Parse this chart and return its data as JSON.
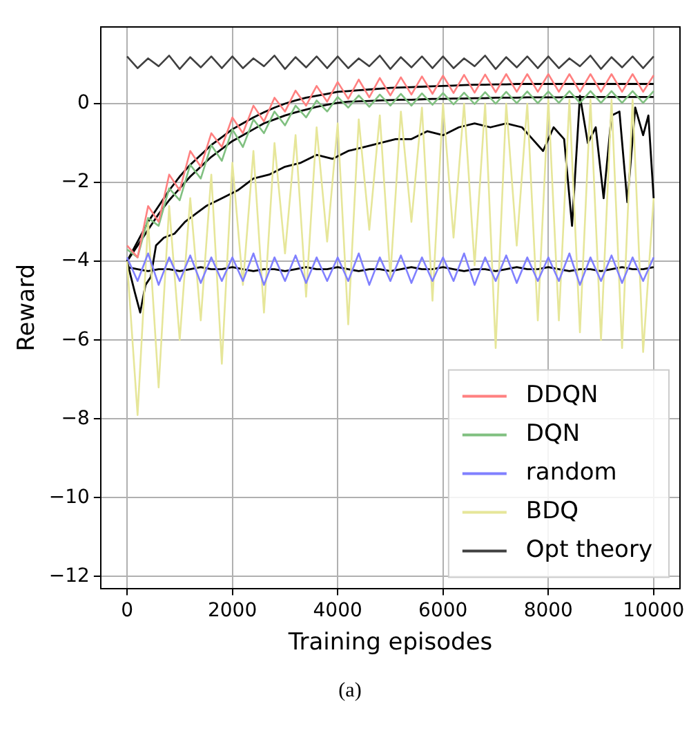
{
  "chart_data": {
    "type": "line",
    "xlabel": "Training episodes",
    "ylabel": "Reward",
    "annotations": [
      "(a)"
    ],
    "xlim": [
      -500,
      10500
    ],
    "ylim": [
      -12.3,
      1.95
    ],
    "xticks": [
      0,
      2000,
      4000,
      6000,
      8000,
      10000
    ],
    "yticks": [
      {
        "value": -12,
        "label": "−12"
      },
      {
        "value": -10,
        "label": "−10"
      },
      {
        "value": -8,
        "label": "−8"
      },
      {
        "value": -6,
        "label": "−6"
      },
      {
        "value": -4,
        "label": "−4"
      },
      {
        "value": -2,
        "label": "−2"
      },
      0
    ],
    "grid": true,
    "legend": "bottom right",
    "marker": "none",
    "line_style": "solid",
    "x": [
      0,
      200,
      400,
      600,
      800,
      1000,
      1200,
      1400,
      1600,
      1800,
      2000,
      2200,
      2400,
      2600,
      2800,
      3000,
      3200,
      3400,
      3600,
      3800,
      4000,
      4200,
      4400,
      4600,
      4800,
      5000,
      5200,
      5400,
      5600,
      5800,
      6000,
      6200,
      6400,
      6600,
      6800,
      7000,
      7200,
      7400,
      7600,
      7800,
      8000,
      8200,
      8400,
      8600,
      8800,
      9000,
      9200,
      9400,
      9600,
      9800,
      10000
    ],
    "series": [
      {
        "name": "DDQN",
        "color": "#ff8080",
        "values": [
          -3.6,
          -3.9,
          -2.6,
          -3.0,
          -1.8,
          -2.2,
          -1.2,
          -1.6,
          -0.75,
          -1.1,
          -0.35,
          -0.75,
          -0.05,
          -0.45,
          0.15,
          -0.2,
          0.33,
          -0.05,
          0.45,
          0.05,
          0.55,
          0.12,
          0.61,
          0.16,
          0.65,
          0.21,
          0.67,
          0.23,
          0.69,
          0.25,
          0.71,
          0.27,
          0.73,
          0.28,
          0.74,
          0.29,
          0.75,
          0.3,
          0.75,
          0.3,
          0.75,
          0.3,
          0.75,
          0.3,
          0.75,
          0.3,
          0.75,
          0.3,
          0.75,
          0.3,
          0.72
        ]
      },
      {
        "name": "DQN",
        "color": "#80c080",
        "values": [
          -3.7,
          -3.9,
          -2.9,
          -3.1,
          -2.15,
          -2.45,
          -1.55,
          -1.9,
          -1.05,
          -1.45,
          -0.65,
          -1.1,
          -0.4,
          -0.75,
          -0.2,
          -0.55,
          -0.05,
          -0.35,
          0.08,
          -0.2,
          0.17,
          -0.1,
          0.21,
          -0.08,
          0.23,
          -0.05,
          0.25,
          -0.05,
          0.26,
          -0.03,
          0.27,
          -0.02,
          0.28,
          -0.01,
          0.29,
          0.0,
          0.3,
          0.01,
          0.31,
          0.01,
          0.31,
          0.02,
          0.32,
          0.02,
          0.32,
          0.02,
          0.32,
          0.02,
          0.32,
          0.02,
          0.32
        ]
      },
      {
        "name": "random",
        "color": "#8080ff",
        "values": [
          -3.9,
          -4.5,
          -3.8,
          -4.6,
          -3.9,
          -4.5,
          -3.85,
          -4.55,
          -3.9,
          -4.5,
          -3.9,
          -4.5,
          -3.8,
          -4.6,
          -3.9,
          -4.5,
          -3.85,
          -4.55,
          -3.9,
          -4.5,
          -3.9,
          -4.5,
          -3.8,
          -4.6,
          -3.9,
          -4.5,
          -3.85,
          -4.55,
          -3.9,
          -4.5,
          -3.9,
          -4.5,
          -3.8,
          -4.6,
          -3.9,
          -4.5,
          -3.85,
          -4.55,
          -3.9,
          -4.5,
          -3.9,
          -4.5,
          -3.8,
          -4.6,
          -3.9,
          -4.5,
          -3.85,
          -4.55,
          -3.9,
          -4.5,
          -3.9
        ]
      },
      {
        "name": "BDQ",
        "color": "#e6e699",
        "values": [
          -4.0,
          -7.9,
          -3.0,
          -7.2,
          -2.6,
          -6.0,
          -2.4,
          -5.5,
          -1.8,
          -6.6,
          -1.5,
          -4.6,
          -1.2,
          -5.3,
          -1.0,
          -3.8,
          -0.8,
          -4.9,
          -0.6,
          -3.5,
          -0.5,
          -5.6,
          -0.4,
          -3.2,
          -0.3,
          -4.4,
          -0.2,
          -3.0,
          -0.1,
          -5.0,
          0.0,
          -3.4,
          0.0,
          -4.1,
          0.0,
          -6.2,
          0.0,
          -3.6,
          0.0,
          -5.5,
          0.1,
          -5.5,
          0.1,
          -5.8,
          0.1,
          -6.0,
          0.1,
          -6.2,
          0.1,
          -6.3,
          -2.4
        ]
      },
      {
        "name": "Opt theory",
        "color": "#404040",
        "values": [
          1.2,
          0.9,
          1.15,
          0.95,
          1.22,
          0.88,
          1.18,
          0.92,
          1.2,
          0.9,
          1.2,
          0.9,
          1.15,
          0.95,
          1.22,
          0.88,
          1.18,
          0.92,
          1.2,
          0.9,
          1.2,
          0.9,
          1.15,
          0.95,
          1.22,
          0.88,
          1.18,
          0.92,
          1.2,
          0.9,
          1.2,
          0.9,
          1.15,
          0.95,
          1.22,
          0.88,
          1.18,
          0.92,
          1.2,
          0.9,
          1.2,
          0.9,
          1.15,
          0.95,
          1.22,
          0.88,
          1.18,
          0.92,
          1.2,
          0.9,
          1.2
        ]
      },
      {
        "color": "#000000",
        "values": [
          -4,
          -3.5,
          -3.0,
          -2.6,
          -2.2,
          -1.85,
          -1.55,
          -1.3,
          -1.05,
          -0.85,
          -0.65,
          -0.5,
          -0.35,
          -0.22,
          -0.1,
          0,
          0.08,
          0.15,
          0.2,
          0.25,
          0.3,
          0.32,
          0.34,
          0.36,
          0.38,
          0.4,
          0.41,
          0.42,
          0.43,
          0.44,
          0.45,
          0.46,
          0.47,
          0.48,
          0.48,
          0.49,
          0.49,
          0.5,
          0.5,
          0.5,
          0.5,
          0.5,
          0.5,
          0.5,
          0.5,
          0.5,
          0.5,
          0.5,
          0.5,
          0.5,
          0.5
        ]
      },
      {
        "color": "#000000",
        "values": [
          -4,
          -3.6,
          -3.2,
          -2.8,
          -2.45,
          -2.15,
          -1.85,
          -1.6,
          -1.35,
          -1.15,
          -0.95,
          -0.8,
          -0.65,
          -0.5,
          -0.4,
          -0.3,
          -0.22,
          -0.15,
          -0.08,
          -0.03,
          0.02,
          0.05,
          0.06,
          0.07,
          0.08,
          0.09,
          0.1,
          0.1,
          0.11,
          0.12,
          0.12,
          0.13,
          0.13,
          0.14,
          0.14,
          0.15,
          0.15,
          0.15,
          0.16,
          0.16,
          0.16,
          0.16,
          0.17,
          0.17,
          0.17,
          0.17,
          0.17,
          0.17,
          0.17,
          0.17,
          0.17
        ]
      },
      {
        "color": "#000000",
        "values": [
          -4.15,
          -4.2,
          -4.25,
          -4.2,
          -4.2,
          -4.25,
          -4.2,
          -4.15,
          -4.2,
          -4.2,
          -4.15,
          -4.2,
          -4.25,
          -4.2,
          -4.2,
          -4.25,
          -4.2,
          -4.15,
          -4.2,
          -4.2,
          -4.15,
          -4.2,
          -4.25,
          -4.2,
          -4.2,
          -4.25,
          -4.2,
          -4.15,
          -4.2,
          -4.2,
          -4.15,
          -4.2,
          -4.25,
          -4.2,
          -4.2,
          -4.25,
          -4.2,
          -4.15,
          -4.2,
          -4.2,
          -4.15,
          -4.2,
          -4.25,
          -4.2,
          -4.2,
          -4.25,
          -4.2,
          -4.15,
          -4.2,
          -4.2,
          -4.15
        ]
      },
      {
        "color": "#000000",
        "x": [
          0,
          150,
          250,
          350,
          450,
          550,
          700,
          900,
          1100,
          1300,
          1500,
          1800,
          2100,
          2400,
          2700,
          3000,
          3300,
          3600,
          3900,
          4200,
          4500,
          4800,
          5100,
          5400,
          5700,
          6000,
          6300,
          6600,
          6900,
          7200,
          7500,
          7700,
          7900,
          8100,
          8300,
          8450,
          8600,
          8750,
          8900,
          9050,
          9200,
          9350,
          9500,
          9650,
          9800,
          9900,
          10000
        ],
        "values": [
          -4.0,
          -4.8,
          -5.3,
          -4.6,
          -4.4,
          -3.6,
          -3.4,
          -3.3,
          -3.0,
          -2.8,
          -2.6,
          -2.4,
          -2.2,
          -1.9,
          -1.8,
          -1.6,
          -1.5,
          -1.3,
          -1.4,
          -1.2,
          -1.1,
          -1.0,
          -0.9,
          -0.9,
          -0.7,
          -0.8,
          -0.6,
          -0.5,
          -0.6,
          -0.5,
          -0.6,
          -0.9,
          -1.2,
          -0.6,
          -0.9,
          -3.1,
          0.2,
          -1.0,
          -0.6,
          -2.4,
          -0.3,
          -0.2,
          -2.5,
          -0.1,
          -0.8,
          -0.3,
          -2.4
        ]
      }
    ]
  }
}
